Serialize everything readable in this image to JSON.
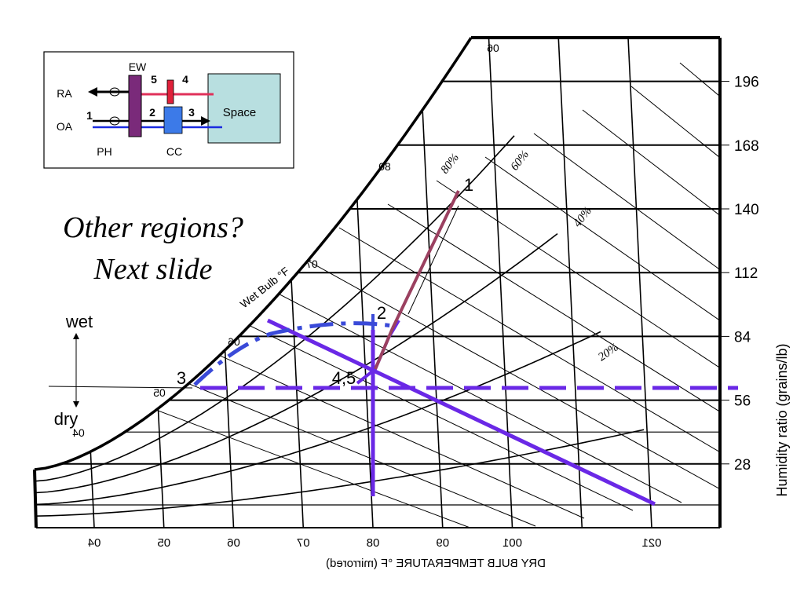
{
  "slide": {
    "question": "Other regions?",
    "next": "Next slide"
  },
  "schematic": {
    "labels": {
      "ew": "EW",
      "ra": "RA",
      "oa": "OA",
      "ph": "PH",
      "cc": "CC",
      "space": "Space"
    },
    "numbers": [
      "1",
      "2",
      "3",
      "4",
      "5"
    ],
    "colors": {
      "ew": "#7a2a7a",
      "return_line": "#e0305a",
      "supply_line": "#1a2ae0",
      "coil": "#3c7ae8",
      "space": "#b8dfe0"
    }
  },
  "moisture_legend": {
    "wet": "wet",
    "dry": "dry"
  },
  "chart_data": {
    "type": "psychrometric",
    "title": "",
    "xlabel": "DRY BULB TEMPERATURE °F (mirrored)",
    "ylabel": "Humidity ratio (grains/lb)",
    "xlim": [
      35,
      125
    ],
    "ylim": [
      0,
      210
    ],
    "x_ticks": [
      40,
      50,
      60,
      70,
      80,
      90,
      100,
      120
    ],
    "x_tick_labels": [
      "04",
      "05",
      "06",
      "07",
      "08",
      "09",
      "001",
      "021"
    ],
    "y_ticks": [
      28,
      56,
      84,
      112,
      140,
      168,
      196
    ],
    "y_tick_labels": [
      "28",
      "56",
      "84",
      "112",
      "140",
      "168",
      "196"
    ],
    "wet_bulb_axis_label": "Wet Bulb °F",
    "wet_bulb_ticks": [
      "04",
      "05",
      "06",
      "07",
      "80",
      "06"
    ],
    "rh_labels": [
      "80%",
      "60%",
      "40%",
      "20%"
    ],
    "rh_label_text": [
      "80%",
      "60%",
      "40%",
      "20%"
    ],
    "state_points": [
      {
        "label": "1",
        "x": 85,
        "y": 148
      },
      {
        "label": "2",
        "x": 80,
        "y": 89
      },
      {
        "label": "3",
        "x": 49,
        "y": 62
      },
      {
        "label": "4,5",
        "x": 72,
        "y": 62
      }
    ],
    "process_lines": [
      {
        "from": "1",
        "to": "2",
        "color": "#9b4060"
      },
      {
        "from": "2",
        "to": "4,5",
        "color": "#9b4060"
      }
    ],
    "construction_lines": {
      "constant_w_dashed_y": 57,
      "vertical_x": 72,
      "sloped_start": [
        68,
        112
      ],
      "sloped_end": [
        123,
        18
      ],
      "color": "#6a28e6",
      "mixing_curve_color": "#3a4ad8"
    },
    "grid": true
  }
}
